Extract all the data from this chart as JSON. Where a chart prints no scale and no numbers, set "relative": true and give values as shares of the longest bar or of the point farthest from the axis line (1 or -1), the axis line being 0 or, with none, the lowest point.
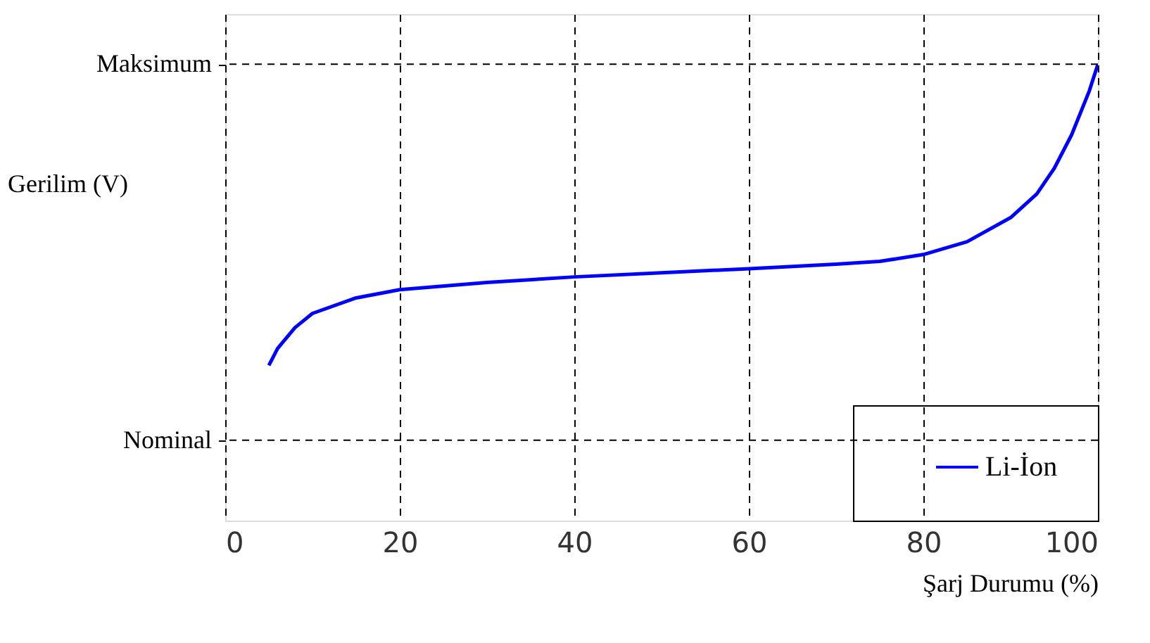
{
  "chart_data": {
    "type": "line",
    "relative": true,
    "xlabel": "Şarj Durumu (%)",
    "ylabel": "Gerilim (V)",
    "x": [
      5,
      6,
      8,
      10,
      15,
      20,
      30,
      40,
      50,
      60,
      70,
      75,
      80,
      85,
      90,
      93,
      95,
      97,
      99,
      100
    ],
    "series": [
      {
        "name": "Li-İon",
        "color": "#0000ff",
        "values": [
          0.34,
          0.377,
          0.423,
          0.454,
          0.488,
          0.506,
          0.522,
          0.534,
          0.543,
          0.552,
          0.562,
          0.568,
          0.583,
          0.611,
          0.664,
          0.716,
          0.772,
          0.846,
          0.941,
          1.0
        ]
      }
    ],
    "xlim": [
      0,
      100
    ],
    "xticks": [
      0,
      20,
      40,
      60,
      80,
      100
    ],
    "ref_lines": [
      {
        "axis": "y",
        "value": 1.0,
        "label": "Maksimum",
        "line_style": "dashed"
      },
      {
        "axis": "y",
        "value": 0.176,
        "label": "Nominal",
        "line_style": "dashed"
      }
    ],
    "grid": "x",
    "legend": "bottom right",
    "marker": "none",
    "line_style": "solid"
  }
}
